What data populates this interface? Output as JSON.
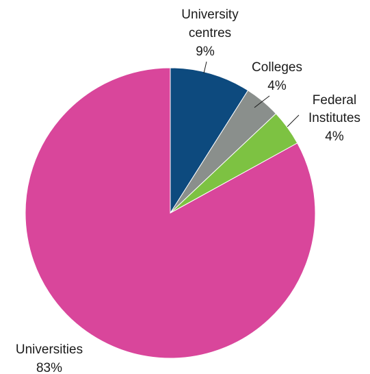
{
  "chart_data": {
    "type": "pie",
    "title": "",
    "start_angle_deg": 0,
    "direction": "clockwise",
    "slices": [
      {
        "label": "University centres",
        "value": 9,
        "value_text": "9%",
        "color": "#0d4a7e"
      },
      {
        "label": "Colleges",
        "value": 4,
        "value_text": "4%",
        "color": "#8a8f8c"
      },
      {
        "label": "Federal Institutes",
        "value": 4,
        "value_text": "4%",
        "color": "#7dc242"
      },
      {
        "label": "Universities",
        "value": 83,
        "value_text": "83%",
        "color": "#d9469b"
      }
    ]
  }
}
